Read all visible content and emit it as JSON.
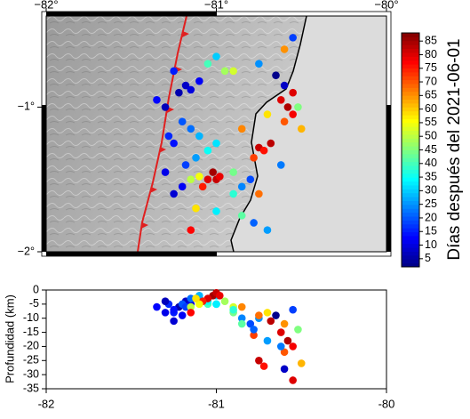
{
  "chart_data": [
    {
      "type": "scatter",
      "x": [
        -81.18,
        -81.15,
        -81.22,
        -81.1,
        -81.25,
        -81.05,
        -80.95,
        -80.9,
        -81.0,
        -80.75,
        -80.6,
        -80.55,
        -80.65,
        -80.62,
        -80.58,
        -80.55,
        -80.6,
        -80.52,
        -80.7,
        -80.75,
        -80.72,
        -80.68,
        -80.78,
        -80.85,
        -81.2,
        -81.15,
        -81.1,
        -81.25,
        -81.05,
        -81.0,
        -81.12,
        -81.18,
        -81.02,
        -81.0,
        -81.05,
        -80.98,
        -81.08,
        -81.1,
        -81.15,
        -80.9,
        -80.85,
        -80.8,
        -80.75,
        -80.9,
        -81.2,
        -81.25,
        -81.3,
        -81.28,
        -81.3,
        -81.35,
        -81.12,
        -81.0,
        -80.85,
        -80.78,
        -81.15,
        -80.7,
        -80.62,
        -80.6,
        -80.55,
        -80.5
      ],
      "y": [
        -0.85,
        -0.88,
        -0.9,
        -0.82,
        -0.75,
        -0.7,
        -0.75,
        -0.75,
        -0.65,
        -0.7,
        -0.6,
        -0.52,
        -0.78,
        -0.95,
        -1.0,
        -1.05,
        -1.1,
        -1.0,
        -1.05,
        -1.28,
        -1.3,
        -1.25,
        -1.35,
        -1.15,
        -1.1,
        -1.15,
        -1.2,
        -1.25,
        -1.3,
        -1.25,
        -1.35,
        -1.4,
        -1.45,
        -1.5,
        -1.5,
        -1.48,
        -1.55,
        -1.48,
        -1.5,
        -1.45,
        -1.55,
        -1.5,
        -1.6,
        -1.6,
        -1.55,
        -1.6,
        -1.45,
        -1.2,
        -1.0,
        -0.95,
        -1.7,
        -1.72,
        -1.75,
        -1.8,
        -1.85,
        -1.85,
        -1.4,
        -0.85,
        -0.9,
        -1.15
      ],
      "color_values": [
        8,
        10,
        6,
        12,
        15,
        40,
        48,
        52,
        30,
        25,
        65,
        18,
        3,
        80,
        84,
        78,
        70,
        45,
        58,
        82,
        76,
        83,
        72,
        66,
        20,
        22,
        28,
        14,
        35,
        32,
        26,
        18,
        85,
        82,
        80,
        79,
        75,
        55,
        50,
        44,
        24,
        19,
        68,
        38,
        12,
        9,
        11,
        16,
        7,
        13,
        58,
        33,
        42,
        21,
        77,
        26,
        23,
        8,
        80,
        62
      ],
      "colormap": "jet",
      "xlim": [
        -82,
        -80
      ],
      "ylim": [
        -2,
        -0.37
      ],
      "xticks": [
        {
          "value": -82,
          "label": "−82°"
        },
        {
          "value": -81,
          "label": "−81°"
        },
        {
          "value": -80,
          "label": "−80°"
        }
      ],
      "yticks": [
        {
          "value": -2,
          "label": "−2°"
        },
        {
          "value": -1,
          "label": "−1°"
        }
      ],
      "colorbar": {
        "label": "Días después del 2021-06-01",
        "lim": [
          2,
          88
        ],
        "ticks": [
          5,
          10,
          15,
          20,
          25,
          30,
          35,
          40,
          45,
          50,
          55,
          60,
          65,
          70,
          75,
          80,
          85
        ]
      }
    },
    {
      "type": "scatter",
      "x": [
        -81.18,
        -81.15,
        -81.22,
        -81.1,
        -81.25,
        -81.05,
        -80.95,
        -80.9,
        -81.0,
        -80.75,
        -80.6,
        -80.55,
        -80.65,
        -80.62,
        -80.58,
        -80.55,
        -80.6,
        -80.52,
        -80.7,
        -80.75,
        -80.72,
        -80.68,
        -80.78,
        -80.85,
        -81.2,
        -81.15,
        -81.1,
        -81.25,
        -81.05,
        -81.0,
        -81.12,
        -81.18,
        -81.02,
        -81.0,
        -81.05,
        -80.98,
        -81.08,
        -81.1,
        -81.15,
        -80.9,
        -80.85,
        -80.8,
        -80.75,
        -80.9,
        -81.2,
        -81.25,
        -81.3,
        -81.28,
        -81.3,
        -81.35,
        -81.12,
        -81.0,
        -80.85,
        -80.78,
        -81.15,
        -80.7,
        -80.62,
        -80.6,
        -80.55,
        -80.5
      ],
      "y": [
        -4,
        -5,
        -6,
        -3,
        -8,
        -5,
        -4,
        -6,
        -2,
        -10,
        -12,
        -7,
        -9,
        -15,
        -18,
        -20,
        -22,
        -14,
        -8,
        -25,
        -27,
        -11,
        -16,
        -6,
        -5,
        -3,
        -2,
        -7,
        -4,
        -5,
        -3,
        -6,
        -2,
        -1,
        -3,
        -2,
        -4,
        -5,
        -6,
        -8,
        -10,
        -12,
        -9,
        -7,
        -9,
        -11,
        -8,
        -5,
        -4,
        -6,
        -3,
        -5,
        -12,
        -14,
        -8,
        -18,
        -20,
        -28,
        -32,
        -26
      ],
      "color_values": [
        8,
        10,
        6,
        12,
        15,
        40,
        48,
        52,
        30,
        25,
        65,
        18,
        3,
        80,
        84,
        78,
        70,
        45,
        58,
        82,
        76,
        83,
        72,
        66,
        20,
        22,
        28,
        14,
        35,
        32,
        26,
        18,
        85,
        82,
        80,
        79,
        75,
        55,
        50,
        44,
        24,
        19,
        68,
        38,
        12,
        9,
        11,
        16,
        7,
        13,
        58,
        33,
        42,
        21,
        77,
        26,
        23,
        8,
        80,
        62
      ],
      "colormap": "jet",
      "xlim": [
        -82,
        -80
      ],
      "ylim": [
        -35,
        0
      ],
      "xticks": [
        -82,
        -81,
        -80
      ],
      "yticks": [
        0,
        -5,
        -10,
        -15,
        -20,
        -25,
        -30,
        -35
      ],
      "ylabel": "Profundidad (km)"
    }
  ]
}
